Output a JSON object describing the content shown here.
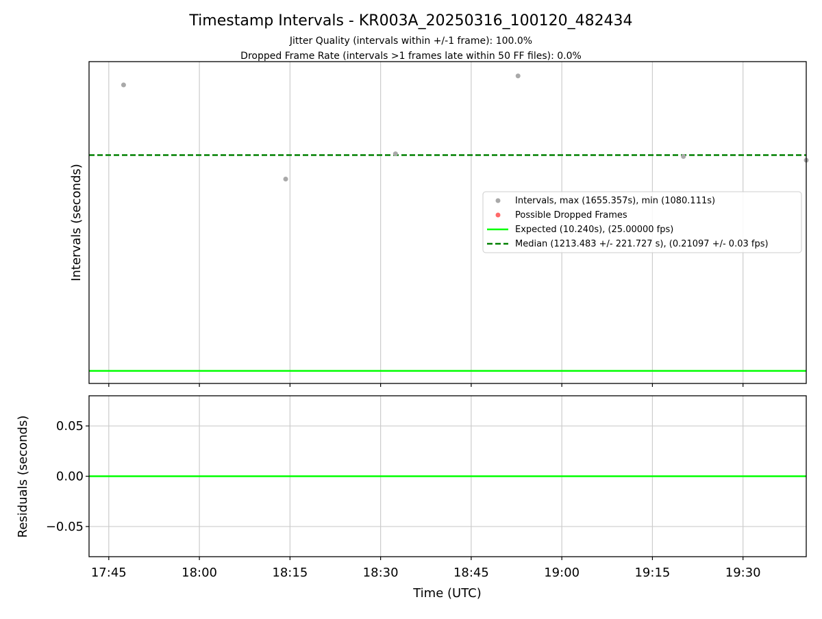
{
  "chart_data": [
    {
      "type": "scatter",
      "title": "Timestamp Intervals - KR003A_20250316_100120_482434",
      "subtitle_lines": [
        "Jitter Quality (intervals within +/-1 frame): 100.0%",
        "Dropped Frame Rate (intervals >1 frames late within 50 FF files): 0.0%"
      ],
      "xlabel": "",
      "ylabel": "Intervals (seconds)",
      "x_ticks": [
        "17:45",
        "18:00",
        "18:15",
        "18:30",
        "18:45",
        "19:00",
        "19:15",
        "19:30"
      ],
      "xlim": [
        "17:41:44",
        "19:40:28"
      ],
      "ylim": [
        -60,
        1735
      ],
      "grid": "vertical",
      "legend_position": "center-right",
      "series": [
        {
          "name": "Intervals, max (1655.357s), min (1080.111s)",
          "kind": "scatter",
          "color": "#a9a9a9",
          "points": [
            {
              "x": "17:47:27",
              "y": 1605
            },
            {
              "x": "18:14:17",
              "y": 1080.111
            },
            {
              "x": "18:32:28",
              "y": 1221
            },
            {
              "x": "18:52:45",
              "y": 1655.357
            },
            {
              "x": "19:20:08",
              "y": 1206
            },
            {
              "x": "19:40:28",
              "y": 1185
            }
          ]
        },
        {
          "name": "Possible Dropped Frames",
          "kind": "scatter",
          "color": "#ff4444",
          "points": []
        },
        {
          "name": "Expected (10.240s), (25.00000 fps)",
          "kind": "hline",
          "color": "#00ff00",
          "y": 10.24
        },
        {
          "name": "Median (1213.483 +/- 221.727 s), (0.21097 +/- 0.03 fps)",
          "kind": "hline-dashed",
          "color": "#008000",
          "y": 1213.483
        }
      ]
    },
    {
      "type": "line",
      "xlabel": "Time (UTC)",
      "ylabel": "Residuals (seconds)",
      "x_ticks": [
        "17:45",
        "18:00",
        "18:15",
        "18:30",
        "18:45",
        "19:00",
        "19:15",
        "19:30"
      ],
      "y_ticks": [
        {
          "value": 0.05,
          "label": "0.05"
        },
        {
          "value": 0.0,
          "label": "0.00"
        },
        {
          "value": -0.05,
          "label": "−0.05"
        }
      ],
      "xlim": [
        "17:41:44",
        "19:40:28"
      ],
      "ylim": [
        -0.08,
        0.08
      ],
      "grid": "both",
      "series": [
        {
          "kind": "hline",
          "color": "#00ff00",
          "y": 0.0
        }
      ]
    }
  ]
}
